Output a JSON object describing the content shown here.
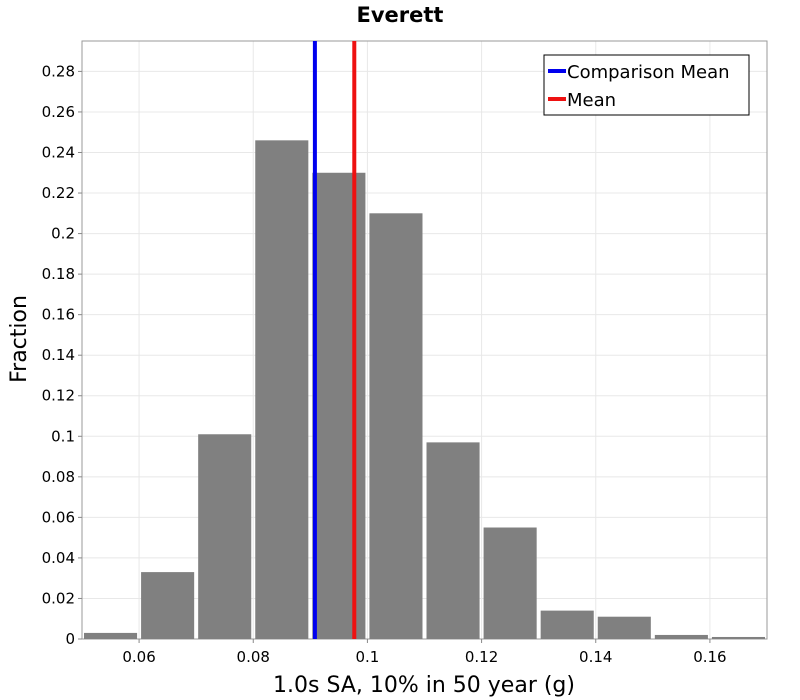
{
  "chart_data": {
    "type": "bar",
    "title": "Everett",
    "xlabel": "1.0s SA, 10% in 50 year (g)",
    "ylabel": "Fraction",
    "xlim": [
      0.05,
      0.17
    ],
    "ylim": [
      0,
      0.295
    ],
    "grid": true,
    "legend_position": "top-right",
    "x_ticks": [
      0.06,
      0.08,
      0.1,
      0.12,
      0.14,
      0.16
    ],
    "x_tick_labels": [
      "0.06",
      "0.08",
      "0.1",
      "0.12",
      "0.14",
      "0.16"
    ],
    "y_ticks": [
      0,
      0.02,
      0.04,
      0.06,
      0.08,
      0.1,
      0.12,
      0.14,
      0.16,
      0.18,
      0.2,
      0.22,
      0.24,
      0.26,
      0.28
    ],
    "y_tick_labels": [
      "0",
      "0.02",
      "0.04",
      "0.06",
      "0.08",
      "0.1",
      "0.12",
      "0.14",
      "0.16",
      "0.18",
      "0.2",
      "0.22",
      "0.24",
      "0.26",
      "0.28"
    ],
    "bin_width": 0.01,
    "bins": [
      {
        "x": 0.055,
        "value": 0.003
      },
      {
        "x": 0.065,
        "value": 0.033
      },
      {
        "x": 0.075,
        "value": 0.101
      },
      {
        "x": 0.085,
        "value": 0.246
      },
      {
        "x": 0.095,
        "value": 0.23
      },
      {
        "x": 0.105,
        "value": 0.21
      },
      {
        "x": 0.115,
        "value": 0.097
      },
      {
        "x": 0.125,
        "value": 0.055
      },
      {
        "x": 0.135,
        "value": 0.014
      },
      {
        "x": 0.145,
        "value": 0.011
      },
      {
        "x": 0.155,
        "value": 0.002
      },
      {
        "x": 0.165,
        "value": 0.001
      }
    ],
    "bar_color": "#808080",
    "reference_lines": [
      {
        "name": "Comparison Mean",
        "x": 0.0908,
        "color": "#0000ee"
      },
      {
        "name": "Mean",
        "x": 0.0977,
        "color": "#ee1111"
      }
    ]
  }
}
